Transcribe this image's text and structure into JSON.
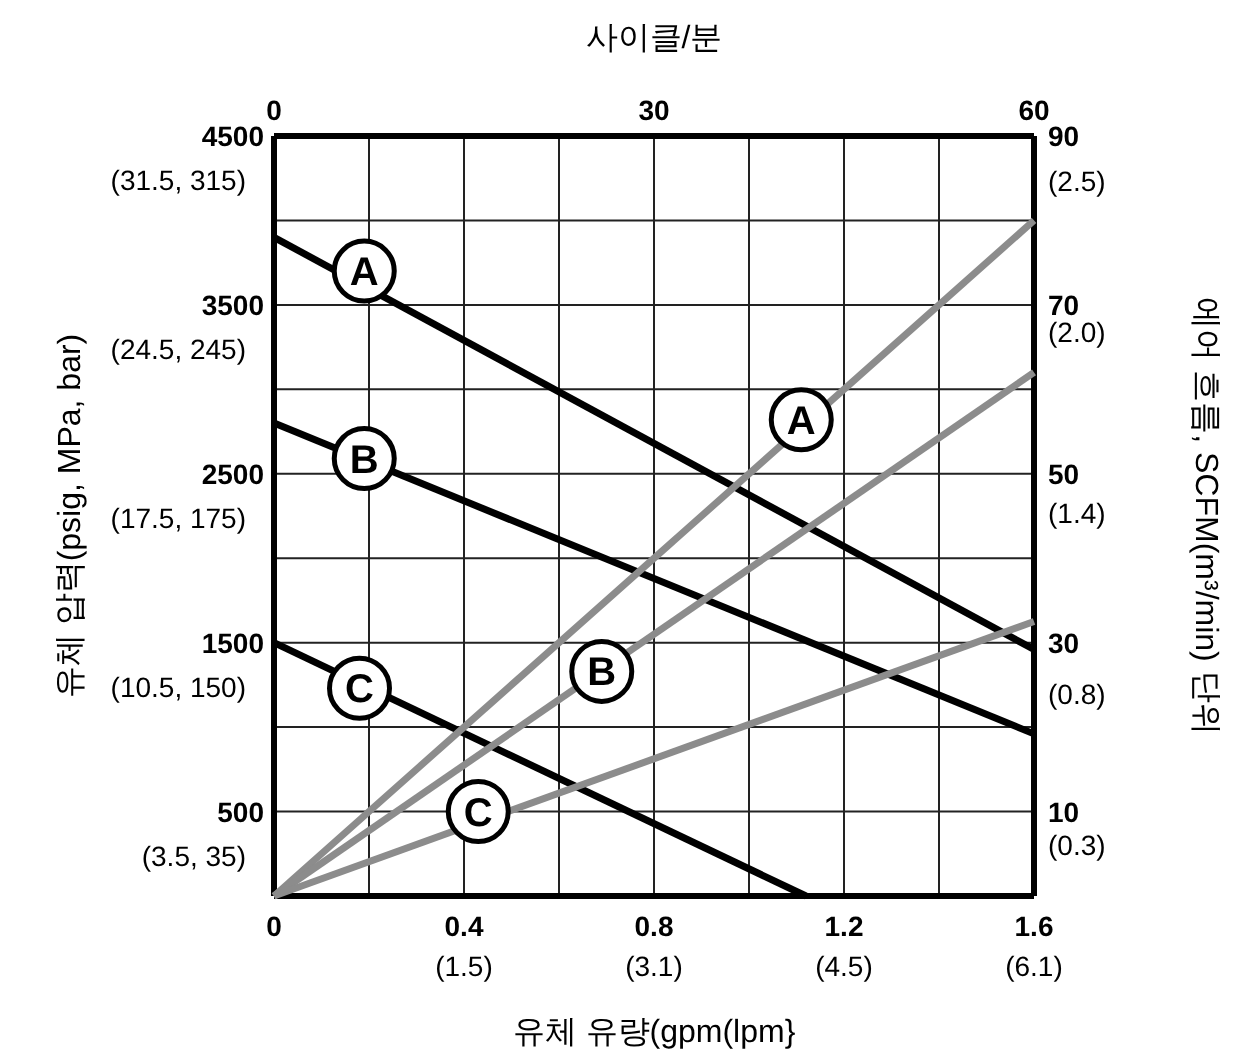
{
  "chart_data": {
    "type": "line",
    "x2label": "사이클/분",
    "xlabel": "유체 유량(gpm(lpm}",
    "ylabel": "유체 압력(psig, MPa, bar)",
    "y2label": "에어 흐름, SCFM(m³/min) 단위",
    "xlim": [
      0,
      1.6
    ],
    "xticks": [
      0,
      {
        "value": 0.2,
        "label": null
      },
      0.4,
      {
        "value": 0.6,
        "label": null
      },
      0.8,
      {
        "value": 1.0,
        "label": null
      },
      1.2,
      {
        "value": 1.4,
        "label": null
      },
      1.6
    ],
    "x2lim": [
      0,
      60
    ],
    "x2ticks": [
      0,
      30,
      60
    ],
    "ylim": [
      0,
      4500
    ],
    "yticks": [
      {
        "value": 0,
        "label": null
      },
      500,
      {
        "value": 1000,
        "label": null
      },
      1500,
      {
        "value": 2000,
        "label": null
      },
      2500,
      {
        "value": 3000,
        "label": null
      },
      3500,
      {
        "value": 4000,
        "label": null
      },
      4500
    ],
    "y2lim": [
      0,
      90
    ],
    "y2ticks": [
      10,
      30,
      50,
      70,
      90
    ],
    "y3lim": [
      0.13,
      2.65
    ],
    "y3ticks": [
      {
        "value": 0.3,
        "label": "(0.3)"
      },
      {
        "value": 0.8,
        "label": "(0.8)"
      },
      {
        "value": 1.4,
        "label": "(1.4)"
      },
      {
        "value": 2.0,
        "label": "(2.0)"
      },
      {
        "value": 2.5,
        "label": "(2.5)"
      }
    ],
    "grid": true,
    "line_style": "solid",
    "marker": "none",
    "series": [
      {
        "color": "#000000",
        "x": [
          0,
          1.6
        ],
        "values": [
          3900,
          1460
        ]
      },
      {
        "color": "#000000",
        "x": [
          0,
          1.6
        ],
        "values": [
          2800,
          960
        ]
      },
      {
        "color": "#000000",
        "x": [
          0,
          1.12
        ],
        "values": [
          1500,
          0
        ]
      },
      {
        "color": "#8c8c8c",
        "axis": "y2",
        "x": [
          0,
          1.6
        ],
        "values": [
          0,
          80
        ]
      },
      {
        "color": "#8c8c8c",
        "axis": "y2",
        "x": [
          0,
          1.6
        ],
        "values": [
          0,
          62
        ]
      },
      {
        "color": "#8c8c8c",
        "axis": "y2",
        "x": [
          0,
          1.6
        ],
        "values": [
          0,
          32.5
        ]
      }
    ],
    "annotations": [
      {
        "text": "A",
        "x": 0.19,
        "y": 3700
      },
      {
        "text": "B",
        "x": 0.19,
        "y": 2590
      },
      {
        "text": "C",
        "x": 0.18,
        "y": 1230
      },
      {
        "text": "A",
        "x": 1.11,
        "y": 2820
      },
      {
        "text": "B",
        "x": 0.69,
        "y": 1330
      },
      {
        "text": "C",
        "x": 0.43,
        "y": 500
      },
      "(1.5)",
      "(3.1)",
      "(4.5)",
      "(6.1)",
      "(3.5, 35)",
      "(10.5, 150)",
      "(17.5, 175)",
      "(24.5, 245)",
      "(31.5, 315)"
    ]
  }
}
